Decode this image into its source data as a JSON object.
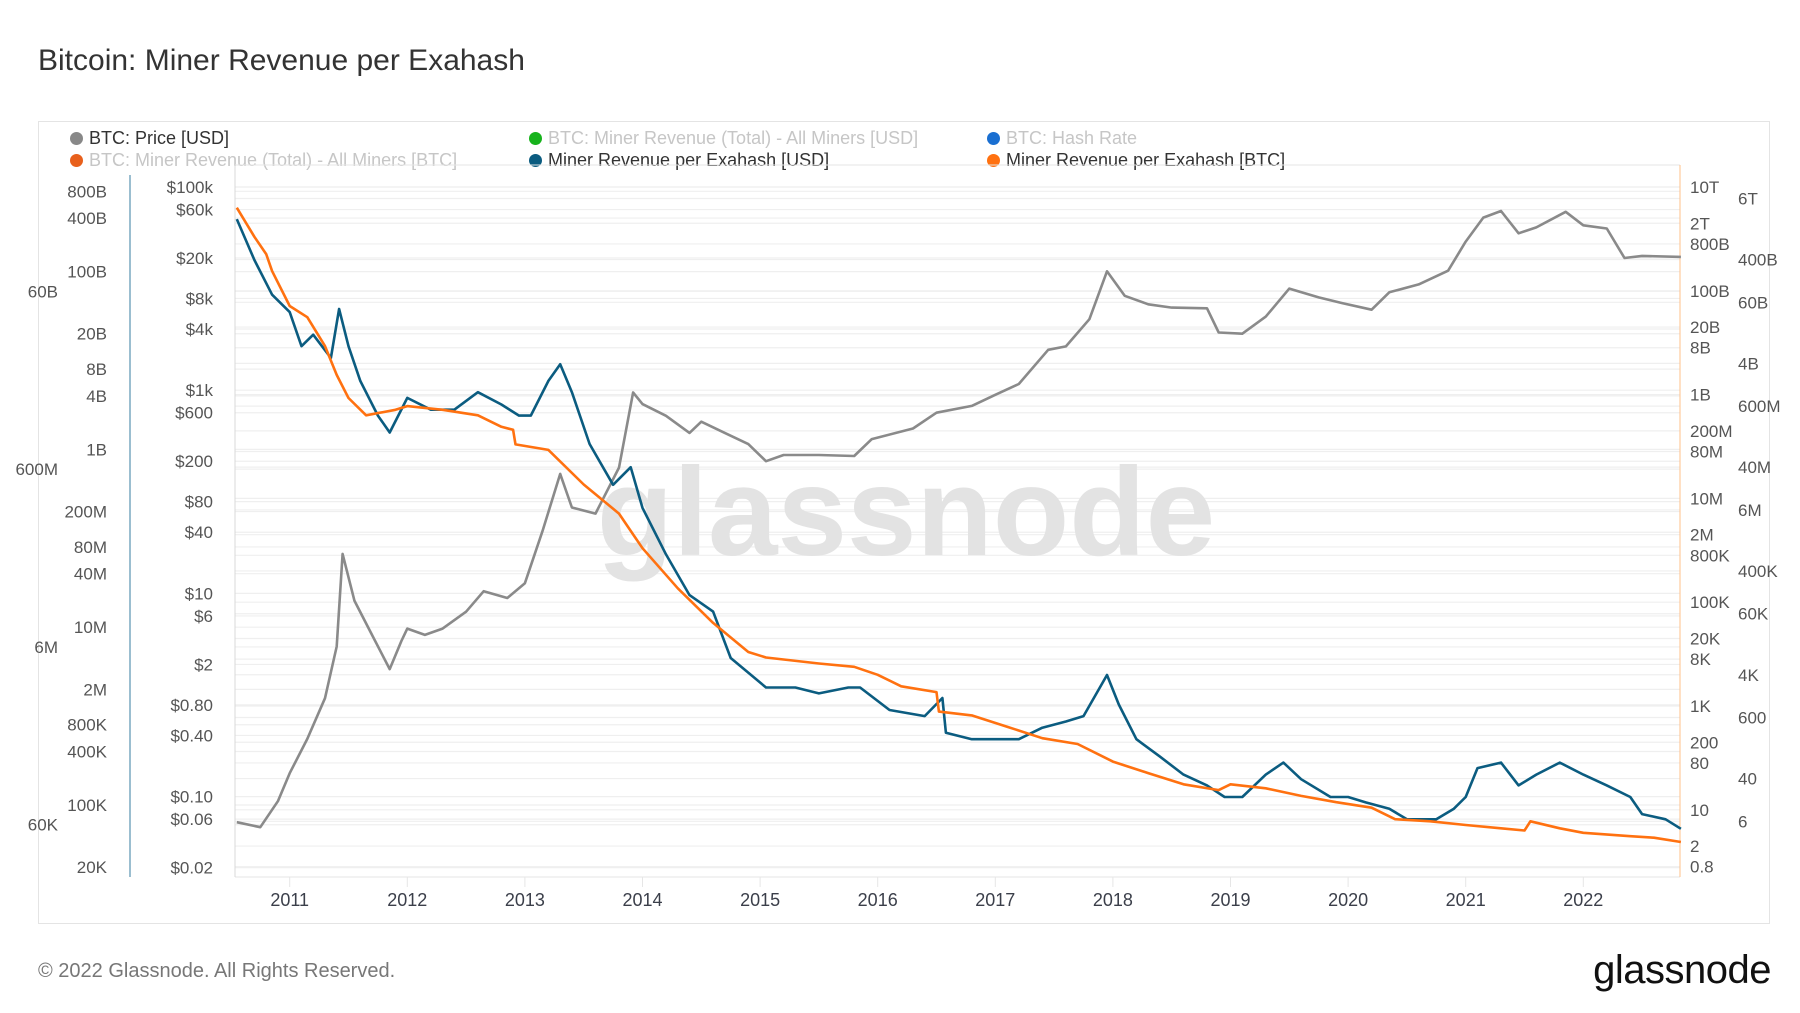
{
  "page": {
    "title": "Bitcoin: Miner Revenue per Exahash",
    "copyright": "© 2022 Glassnode. All Rights Reserved.",
    "logo": "glassnode",
    "watermark": "glassnode"
  },
  "legend": [
    {
      "label": "BTC: Price [USD]",
      "color": "#888888",
      "active": true
    },
    {
      "label": "BTC: Miner Revenue (Total) - All Miners [USD]",
      "color": "#17b31c",
      "active": false
    },
    {
      "label": "BTC: Hash Rate",
      "color": "#1a6fd1",
      "active": false
    },
    {
      "label": "BTC: Miner Revenue (Total) - All Miners [BTC]",
      "color": "#e8601c",
      "active": false
    },
    {
      "label": "Miner Revenue per Exahash [USD]",
      "color": "#0b5c80",
      "active": true
    },
    {
      "label": "Miner Revenue per Exahash [BTC]",
      "color": "#ff7110",
      "active": true
    }
  ],
  "chart_data": {
    "type": "line",
    "title": "Bitcoin: Miner Revenue per Exahash",
    "x_range": [
      "2010-07",
      "2022-11"
    ],
    "x_ticks": [
      "2011",
      "2012",
      "2013",
      "2014",
      "2015",
      "2016",
      "2017",
      "2018",
      "2019",
      "2020",
      "2021",
      "2022"
    ],
    "grid": true,
    "legend_position": "top",
    "axes": {
      "price": {
        "scale": "log",
        "range": [
          0.02,
          100000
        ],
        "ticks": [
          "$100k",
          "$60k",
          "$20k",
          "$8k",
          "$4k",
          "$1k",
          "$600",
          "$200",
          "$80",
          "$40",
          "$10",
          "$6",
          "$2",
          "$0.80",
          "$0.40",
          "$0.10",
          "$0.06",
          "$0.02"
        ]
      },
      "left": {
        "scale": "log",
        "range": [
          20000,
          800000000000
        ],
        "ticks": [
          "800B",
          "400B",
          "100B",
          "60B",
          "20B",
          "8B",
          "4B",
          "1B",
          "600M",
          "200M",
          "80M",
          "40M",
          "10M",
          "6M",
          "2M",
          "800K",
          "400K",
          "100K",
          "60K",
          "20K"
        ]
      },
      "right": {
        "scale": "log",
        "range": [
          0.8,
          10000000000000
        ],
        "ticks": [
          "10T",
          "6T",
          "2T",
          "800B",
          "400B",
          "100B",
          "60B",
          "20B",
          "8B",
          "4B",
          "1B",
          "600M",
          "200M",
          "80M",
          "40M",
          "10M",
          "6M",
          "2M",
          "800K",
          "400K",
          "100K",
          "60K",
          "20K",
          "8K",
          "4K",
          "1K",
          "600",
          "200",
          "80",
          "40",
          "10",
          "6",
          "2",
          "0.8"
        ]
      }
    },
    "series": [
      {
        "name": "BTC: Price [USD]",
        "axis": "price",
        "color": "#8a8a8a",
        "x": [
          2010.55,
          2010.75,
          2010.9,
          2011.0,
          2011.15,
          2011.3,
          2011.4,
          2011.45,
          2011.55,
          2011.7,
          2011.85,
          2011.95,
          2012.0,
          2012.15,
          2012.3,
          2012.5,
          2012.65,
          2012.85,
          2013.0,
          2013.15,
          2013.3,
          2013.4,
          2013.6,
          2013.8,
          2013.92,
          2014.0,
          2014.2,
          2014.4,
          2014.5,
          2014.7,
          2014.9,
          2015.05,
          2015.2,
          2015.5,
          2015.8,
          2015.95,
          2016.3,
          2016.5,
          2016.8,
          2017.0,
          2017.2,
          2017.45,
          2017.6,
          2017.8,
          2017.95,
          2018.1,
          2018.3,
          2018.5,
          2018.8,
          2018.9,
          2019.1,
          2019.3,
          2019.5,
          2019.75,
          2019.95,
          2020.2,
          2020.35,
          2020.6,
          2020.85,
          2021.0,
          2021.15,
          2021.3,
          2021.45,
          2021.6,
          2021.85,
          2022.0,
          2022.2,
          2022.35,
          2022.5,
          2022.83
        ],
        "y": [
          0.056,
          0.05,
          0.09,
          0.17,
          0.37,
          0.93,
          3.0,
          24.5,
          8.5,
          3.9,
          1.8,
          3.4,
          4.5,
          3.9,
          4.5,
          6.6,
          10.5,
          9,
          12.6,
          41,
          150,
          70,
          61,
          173,
          950,
          730,
          560,
          380,
          490,
          380,
          295,
          200,
          230,
          230,
          225,
          330,
          420,
          600,
          700,
          900,
          1150,
          2500,
          2700,
          5000,
          14800,
          8500,
          7000,
          6500,
          6400,
          3700,
          3600,
          5300,
          10000,
          8200,
          7200,
          6200,
          9200,
          11000,
          15000,
          29000,
          50000,
          58000,
          35000,
          40000,
          57000,
          42000,
          39000,
          20000,
          21000,
          20500
        ]
      },
      {
        "name": "Miner Revenue per Exahash [USD]",
        "axis": "left",
        "color": "#0b5c80",
        "x": [
          2010.55,
          2010.7,
          2010.85,
          2011.0,
          2011.1,
          2011.2,
          2011.35,
          2011.42,
          2011.5,
          2011.6,
          2011.75,
          2011.85,
          2012.0,
          2012.2,
          2012.4,
          2012.6,
          2012.8,
          2012.95,
          2013.05,
          2013.2,
          2013.3,
          2013.4,
          2013.55,
          2013.75,
          2013.9,
          2014.0,
          2014.2,
          2014.4,
          2014.6,
          2014.75,
          2015.05,
          2015.3,
          2015.5,
          2015.75,
          2015.85,
          2016.1,
          2016.4,
          2016.55,
          2016.58,
          2016.8,
          2017.0,
          2017.2,
          2017.4,
          2017.6,
          2017.75,
          2017.95,
          2018.05,
          2018.2,
          2018.4,
          2018.6,
          2018.8,
          2018.95,
          2019.1,
          2019.3,
          2019.45,
          2019.6,
          2019.85,
          2020.0,
          2020.15,
          2020.35,
          2020.5,
          2020.75,
          2020.9,
          2021.0,
          2021.1,
          2021.3,
          2021.45,
          2021.6,
          2021.8,
          2022.0,
          2022.2,
          2022.4,
          2022.5,
          2022.7,
          2022.83
        ],
        "y": [
          390000000000,
          135000000000,
          55000000000,
          35000000000,
          14500000000,
          19500000000,
          10700000000,
          38000000000,
          14500000000,
          5900000000,
          2400000000,
          1550000000,
          3800000000,
          2800000000,
          2800000000,
          4400000000,
          3200000000,
          2400000000,
          2400000000,
          5900000000,
          9100000000,
          4400000000,
          1150000000,
          400000000,
          630000000,
          220000000,
          66000000,
          23000000,
          15000000,
          4500000,
          2100000,
          2100000,
          1800000,
          2100000,
          2100000,
          1170000,
          1000000,
          1600000,
          650000,
          550000,
          550000,
          550000,
          740000,
          870000,
          1000000,
          2900000,
          1350000,
          550000,
          350000,
          220000,
          166000,
          123000,
          123000,
          220000,
          300000,
          195000,
          123000,
          123000,
          107000,
          91000,
          69000,
          69000,
          91000,
          123000,
          260000,
          300000,
          166000,
          220000,
          300000,
          220000,
          166000,
          123000,
          79000,
          69000,
          54000
        ]
      },
      {
        "name": "Miner Revenue per Exahash [BTC]",
        "axis": "right",
        "color": "#ff7110",
        "x": [
          2010.55,
          2010.7,
          2010.8,
          2010.85,
          2011.0,
          2011.15,
          2011.3,
          2011.4,
          2011.5,
          2011.65,
          2011.9,
          2012.0,
          2012.3,
          2012.6,
          2012.8,
          2012.9,
          2012.92,
          2013.2,
          2013.5,
          2013.8,
          2014.0,
          2014.3,
          2014.6,
          2014.9,
          2015.05,
          2015.5,
          2015.8,
          2016.0,
          2016.2,
          2016.5,
          2016.52,
          2016.8,
          2017.1,
          2017.4,
          2017.7,
          2018.0,
          2018.3,
          2018.6,
          2018.9,
          2019.0,
          2019.3,
          2019.6,
          2019.9,
          2020.2,
          2020.4,
          2020.7,
          2021.0,
          2021.3,
          2021.5,
          2021.55,
          2021.8,
          2022.0,
          2022.4,
          2022.6,
          2022.83
        ],
        "y": [
          4000000000000,
          1100000000000,
          510000000000,
          240000000000,
          51000000000,
          31000000000,
          8600000000,
          2400000000,
          860000000,
          400000000,
          510000000,
          600000000,
          510000000,
          400000000,
          240000000,
          210000000,
          110000000,
          86000000,
          18500000,
          5100000,
          1100000,
          185000,
          40000,
          11000,
          8600,
          6600,
          5700,
          4000,
          2400,
          1850,
          780,
          660,
          400,
          240,
          185,
          85,
          51,
          31,
          24,
          31,
          26,
          18.5,
          14,
          11,
          6.6,
          6,
          5.1,
          4.4,
          4,
          6,
          4.4,
          3.6,
          3.1,
          2.9,
          2.4
        ]
      }
    ]
  }
}
